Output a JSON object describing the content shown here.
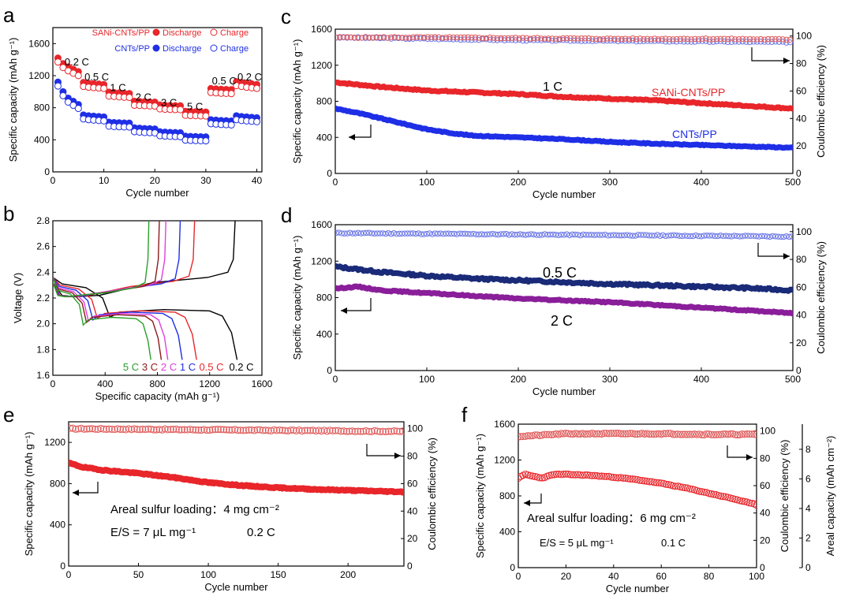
{
  "colors": {
    "red": "#e8262b",
    "blue": "#1f2fe6",
    "navy": "#1a2b78",
    "purple": "#8a1f9a",
    "ce": "#e05a5a",
    "ce_blue": "#6e79e6"
  },
  "chart_data": [
    {
      "panel": "a",
      "type": "scatter",
      "xlabel": "Cycle number",
      "ylabel": "Specific capacity (mAh g⁻¹)",
      "xlim": [
        0,
        41
      ],
      "ylim": [
        0,
        1800
      ],
      "xticks": [
        0,
        10,
        20,
        30,
        40
      ],
      "yticks": [
        0,
        400,
        800,
        1200,
        1600
      ],
      "legend": {
        "rows": [
          "SANi-CNTs/PP",
          "CNTs/PP"
        ],
        "cols": [
          "Discharge",
          "Charge"
        ]
      },
      "rate_labels": [
        {
          "text": "0.2 C",
          "x": 2.3,
          "y": 1330
        },
        {
          "text": "0.5 C",
          "x": 6.2,
          "y": 1140
        },
        {
          "text": "1 C",
          "x": 11.2,
          "y": 1010
        },
        {
          "text": "2 C",
          "x": 16.2,
          "y": 890
        },
        {
          "text": "3 C",
          "x": 21.2,
          "y": 820
        },
        {
          "text": "5 C",
          "x": 26.3,
          "y": 770
        },
        {
          "text": "0.5 C",
          "x": 31.2,
          "y": 1090
        },
        {
          "text": "0.2 C",
          "x": 36.2,
          "y": 1140
        }
      ],
      "series": [
        {
          "name": "SANi-CNTs/PP",
          "x": [
            1,
            2,
            3,
            4,
            5,
            6,
            7,
            8,
            9,
            10,
            11,
            12,
            13,
            14,
            15,
            16,
            17,
            18,
            19,
            20,
            21,
            22,
            23,
            24,
            25,
            26,
            27,
            28,
            29,
            30,
            31,
            32,
            33,
            34,
            35,
            36,
            37,
            38,
            39,
            40
          ],
          "values": [
            1420,
            1350,
            1310,
            1280,
            1250,
            1115,
            1105,
            1100,
            1095,
            1090,
            995,
            990,
            985,
            980,
            978,
            880,
            878,
            875,
            872,
            870,
            835,
            830,
            828,
            826,
            825,
            755,
            752,
            750,
            748,
            746,
            1040,
            1035,
            1030,
            1028,
            1025,
            1125,
            1115,
            1105,
            1098,
            1090
          ]
        },
        {
          "name": "CNTs/PP",
          "x": [
            1,
            2,
            3,
            4,
            5,
            6,
            7,
            8,
            9,
            10,
            11,
            12,
            13,
            14,
            15,
            16,
            17,
            18,
            19,
            20,
            21,
            22,
            23,
            24,
            25,
            26,
            27,
            28,
            29,
            30,
            31,
            32,
            33,
            34,
            35,
            36,
            37,
            38,
            39,
            40
          ],
          "values": [
            1120,
            1000,
            920,
            880,
            840,
            710,
            700,
            695,
            690,
            685,
            620,
            615,
            612,
            610,
            608,
            550,
            545,
            540,
            538,
            535,
            500,
            495,
            492,
            490,
            488,
            445,
            442,
            440,
            438,
            436,
            650,
            645,
            640,
            638,
            635,
            700,
            690,
            685,
            680,
            675
          ]
        }
      ]
    },
    {
      "panel": "b",
      "type": "line",
      "xlabel": "Specific capacity (mAh g⁻¹)",
      "ylabel": "Voltage (V)",
      "xlim": [
        0,
        1600
      ],
      "ylim": [
        1.6,
        2.8
      ],
      "xticks": [
        0,
        400,
        800,
        1200,
        1600
      ],
      "yticks": [
        1.6,
        1.8,
        2.0,
        2.2,
        2.4,
        2.6,
        2.8
      ],
      "curve_labels": [
        "5 C",
        "3 C",
        "2 C",
        "1 C",
        "0.5 C",
        "0.2 C"
      ],
      "series": [
        {
          "name": "0.2 C",
          "color": "#000000",
          "discharge_capacity": 1410,
          "charge_capacity": 1395,
          "upper_plateau": 2.28,
          "lower_plateau": 2.11,
          "charge_plateau": 2.36
        },
        {
          "name": "0.5 C",
          "color": "#e8262b",
          "discharge_capacity": 1100,
          "charge_capacity": 1085,
          "upper_plateau": 2.27,
          "lower_plateau": 2.1,
          "charge_plateau": 2.33
        },
        {
          "name": "1 C",
          "color": "#1f2fe6",
          "discharge_capacity": 990,
          "charge_capacity": 975,
          "upper_plateau": 2.26,
          "lower_plateau": 2.09,
          "charge_plateau": 2.31
        },
        {
          "name": "2 C",
          "color": "#e040e0",
          "discharge_capacity": 880,
          "charge_capacity": 865,
          "upper_plateau": 2.25,
          "lower_plateau": 2.08,
          "charge_plateau": 2.3
        },
        {
          "name": "3 C",
          "color": "#8b1a1a",
          "discharge_capacity": 830,
          "charge_capacity": 815,
          "upper_plateau": 2.24,
          "lower_plateau": 2.07,
          "charge_plateau": 2.29
        },
        {
          "name": "5 C",
          "color": "#2aa02a",
          "discharge_capacity": 750,
          "charge_capacity": 735,
          "upper_plateau": 2.23,
          "lower_plateau": 2.05,
          "charge_plateau": 2.28
        }
      ]
    },
    {
      "panel": "c",
      "type": "scatter",
      "xlabel": "Cycle number",
      "ylabel": "Specific capacity (mAh g⁻¹)",
      "y2label": "Coulombic efficiency (%)",
      "xlim": [
        0,
        500
      ],
      "ylim": [
        0,
        1600
      ],
      "y2lim": [
        0,
        105
      ],
      "xticks": [
        0,
        100,
        200,
        300,
        400,
        500
      ],
      "yticks": [
        0,
        400,
        800,
        1200,
        1600
      ],
      "y2ticks": [
        0,
        20,
        40,
        60,
        80,
        100
      ],
      "annotations": {
        "rate": "1 C",
        "red_name": "SANi-CNTs/PP",
        "blue_name": "CNTs/PP"
      },
      "series": [
        {
          "name": "SANi-CNTs/PP",
          "x": [
            0,
            50,
            100,
            150,
            200,
            250,
            300,
            350,
            400,
            450,
            500
          ],
          "values": [
            1010,
            960,
            920,
            900,
            880,
            850,
            830,
            810,
            780,
            750,
            720
          ]
        },
        {
          "name": "CNTs/PP",
          "x": [
            0,
            25,
            50,
            75,
            100,
            125,
            150,
            200,
            250,
            300,
            350,
            400,
            450,
            500
          ],
          "values": [
            720,
            670,
            610,
            550,
            490,
            450,
            420,
            400,
            380,
            350,
            330,
            315,
            300,
            285
          ]
        },
        {
          "name": "CE SANi-CNTs/PP",
          "axis": "y2",
          "x": [
            0,
            100,
            200,
            300,
            400,
            500
          ],
          "values": [
            99,
            99,
            98.5,
            98,
            98,
            97.5
          ]
        },
        {
          "name": "CE CNTs/PP",
          "axis": "y2",
          "x": [
            0,
            100,
            200,
            300,
            400,
            500
          ],
          "values": [
            99,
            98,
            97,
            96.5,
            96,
            95.5
          ]
        }
      ]
    },
    {
      "panel": "d",
      "type": "scatter",
      "xlabel": "Cycle number",
      "ylabel": "Specific capacity (mAh g⁻¹)",
      "y2label": "Coulombic efficiency (%)",
      "xlim": [
        0,
        500
      ],
      "ylim": [
        0,
        1600
      ],
      "y2lim": [
        0,
        105
      ],
      "xticks": [
        0,
        100,
        200,
        300,
        400,
        500
      ],
      "yticks": [
        0,
        400,
        800,
        1200,
        1600
      ],
      "y2ticks": [
        0,
        20,
        40,
        60,
        80,
        100
      ],
      "annotations": {
        "upper": "0.5 C",
        "lower": "2 C"
      },
      "series": [
        {
          "name": "0.5 C",
          "x": [
            0,
            50,
            100,
            150,
            200,
            250,
            300,
            350,
            400,
            450,
            500
          ],
          "values": [
            1140,
            1080,
            1040,
            1010,
            990,
            970,
            950,
            935,
            920,
            905,
            880
          ]
        },
        {
          "name": "2 C",
          "x": [
            0,
            25,
            50,
            100,
            150,
            200,
            250,
            300,
            350,
            400,
            450,
            500
          ],
          "values": [
            900,
            920,
            880,
            850,
            820,
            790,
            770,
            750,
            720,
            690,
            660,
            630
          ]
        },
        {
          "name": "CE",
          "axis": "y2",
          "x": [
            0,
            100,
            200,
            300,
            400,
            500
          ],
          "values": [
            99,
            98.5,
            98,
            97.5,
            97,
            96.5
          ]
        }
      ]
    },
    {
      "panel": "e",
      "type": "scatter",
      "xlabel": "Cycle number",
      "ylabel": "Specific capacity (mAh g⁻¹)",
      "y2label": "Coulombic efficiency (%)",
      "xlim": [
        0,
        240
      ],
      "ylim": [
        0,
        1400
      ],
      "y2lim": [
        0,
        105
      ],
      "xticks": [
        0,
        50,
        100,
        150,
        200
      ],
      "yticks": [
        0,
        400,
        800,
        1200
      ],
      "y2ticks": [
        0,
        20,
        40,
        60,
        80,
        100
      ],
      "annotations": {
        "loading": "Areal sulfur loading：4 mg cm⁻²",
        "es": "E/S = 7 μL mg⁻¹",
        "rate": "0.2 C"
      },
      "series": [
        {
          "name": "Capacity",
          "x": [
            0,
            10,
            25,
            50,
            75,
            100,
            125,
            150,
            175,
            200,
            225,
            240
          ],
          "values": [
            1000,
            960,
            930,
            900,
            860,
            810,
            780,
            760,
            745,
            735,
            725,
            720
          ]
        },
        {
          "name": "CE",
          "axis": "y2",
          "x": [
            0,
            60,
            120,
            180,
            240
          ],
          "values": [
            100,
            99.5,
            99,
            98.5,
            98
          ]
        }
      ]
    },
    {
      "panel": "f",
      "type": "scatter",
      "xlabel": "Cycle number",
      "ylabel": "Specific capacity (mAh g⁻¹)",
      "y2label": "Coulombic efficiency (%)",
      "y3label": "Areal capacity (mAh cm⁻²)",
      "xlim": [
        0,
        100
      ],
      "ylim": [
        0,
        1600
      ],
      "y2lim": [
        0,
        105
      ],
      "y3lim": [
        0,
        9.7
      ],
      "xticks": [
        0,
        20,
        40,
        60,
        80,
        100
      ],
      "yticks": [
        0,
        400,
        800,
        1200,
        1600
      ],
      "y2ticks": [
        0,
        20,
        40,
        60,
        80,
        100
      ],
      "y3ticks": [
        0,
        2,
        4,
        6,
        8
      ],
      "annotations": {
        "loading": "Areal sulfur loading：6 mg cm⁻²",
        "es": "E/S = 5 μL mg⁻¹",
        "rate": "0.1 C"
      },
      "series": [
        {
          "name": "Capacity",
          "x": [
            0,
            3,
            6,
            10,
            15,
            20,
            30,
            40,
            50,
            60,
            70,
            80,
            90,
            100
          ],
          "values": [
            1000,
            1040,
            1020,
            1000,
            1040,
            1040,
            1030,
            1010,
            980,
            940,
            890,
            830,
            770,
            700
          ]
        },
        {
          "name": "CE",
          "axis": "y2",
          "x": [
            0,
            10,
            20,
            40,
            60,
            80,
            100
          ],
          "values": [
            96,
            97,
            98,
            98,
            98,
            97.5,
            97.5
          ]
        }
      ]
    }
  ]
}
